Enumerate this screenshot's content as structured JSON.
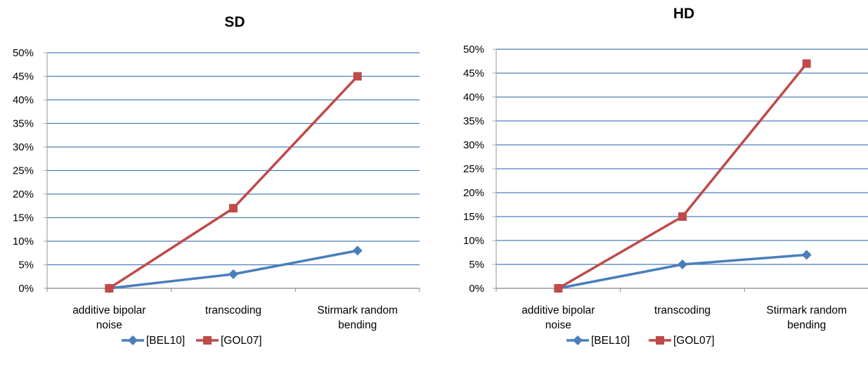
{
  "colors": {
    "series_blue": "#4a7ebb",
    "series_red": "#be4b48",
    "grid": "#4a7ebb"
  },
  "chart_data": [
    {
      "type": "line",
      "title": "SD",
      "xlabel": "",
      "ylabel": "",
      "categories": [
        "additive bipolar noise",
        "transcoding",
        "Stirmark random bending"
      ],
      "category_lines": [
        [
          "additive bipolar",
          "noise"
        ],
        [
          "transcoding"
        ],
        [
          "Stirmark random",
          "bending"
        ]
      ],
      "ylim": [
        0,
        50
      ],
      "y_ticks": [
        "0%",
        "5%",
        "10%",
        "15%",
        "20%",
        "25%",
        "30%",
        "35%",
        "40%",
        "45%",
        "50%"
      ],
      "grid": true,
      "legend_position": "bottom",
      "series": [
        {
          "name": "[BEL10]",
          "values": [
            0,
            3,
            8
          ],
          "color": "#4a7ebb",
          "marker": "diamond"
        },
        {
          "name": "[GOL07]",
          "values": [
            0,
            17,
            45
          ],
          "color": "#be4b48",
          "marker": "square"
        }
      ]
    },
    {
      "type": "line",
      "title": "HD",
      "xlabel": "",
      "ylabel": "",
      "categories": [
        "additive bipolar noise",
        "transcoding",
        "Stirmark random bending"
      ],
      "category_lines": [
        [
          "additive bipolar",
          "noise"
        ],
        [
          "transcoding"
        ],
        [
          "Stirmark random",
          "bending"
        ]
      ],
      "ylim": [
        0,
        50
      ],
      "y_ticks": [
        "0%",
        "5%",
        "10%",
        "15%",
        "20%",
        "25%",
        "30%",
        "35%",
        "40%",
        "45%",
        "50%"
      ],
      "grid": true,
      "legend_position": "bottom",
      "series": [
        {
          "name": "[BEL10]",
          "values": [
            0,
            5,
            7
          ],
          "color": "#4a7ebb",
          "marker": "diamond"
        },
        {
          "name": "[GOL07]",
          "values": [
            0,
            15,
            47
          ],
          "color": "#be4b48",
          "marker": "square"
        }
      ]
    }
  ]
}
